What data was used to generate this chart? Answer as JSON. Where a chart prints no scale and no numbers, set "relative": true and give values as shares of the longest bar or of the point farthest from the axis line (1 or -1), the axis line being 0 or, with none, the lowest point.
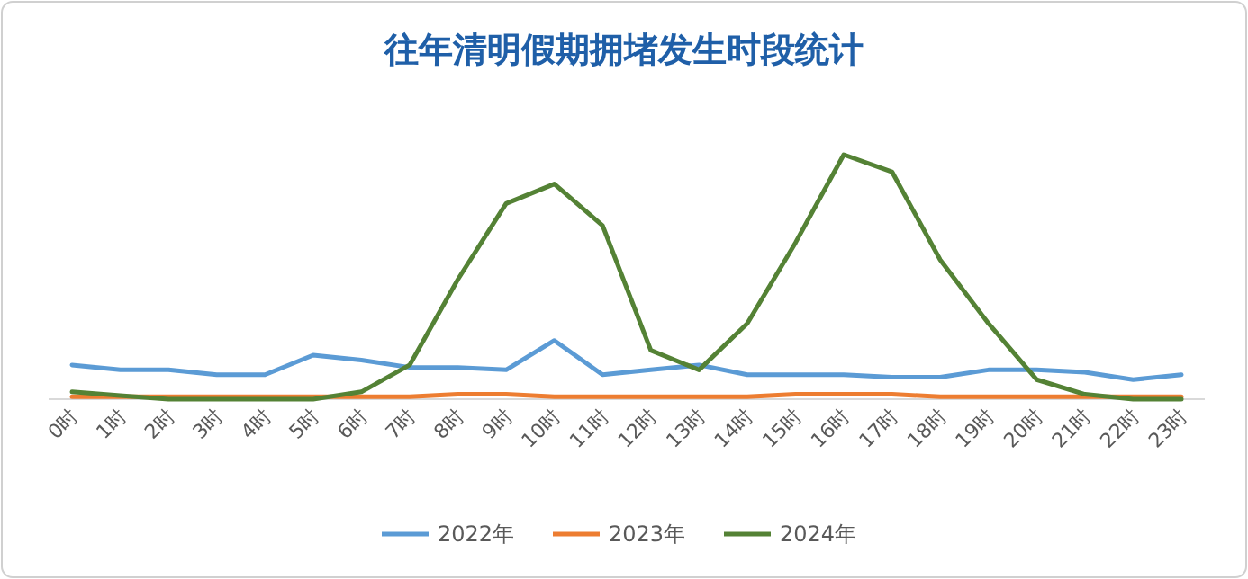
{
  "chart_data": {
    "type": "line",
    "title": "往年清明假期拥堵发生时段统计",
    "relative": true,
    "legend": "bottom",
    "tick_labels": "x",
    "categories": [
      "0时",
      "1时",
      "2时",
      "3时",
      "4时",
      "5时",
      "6时",
      "7时",
      "8时",
      "9时",
      "10时",
      "11时",
      "12时",
      "13时",
      "14时",
      "15时",
      "16时",
      "17时",
      "18时",
      "19时",
      "20时",
      "21时",
      "22时",
      "23时"
    ],
    "series": [
      {
        "name": "2022年",
        "color": "#5b9bd5",
        "values": [
          0.14,
          0.12,
          0.12,
          0.1,
          0.1,
          0.18,
          0.16,
          0.13,
          0.13,
          0.12,
          0.24,
          0.1,
          0.12,
          0.14,
          0.1,
          0.1,
          0.1,
          0.09,
          0.09,
          0.12,
          0.12,
          0.11,
          0.08,
          0.1
        ]
      },
      {
        "name": "2023年",
        "color": "#ed7d31",
        "values": [
          0.01,
          0.01,
          0.01,
          0.01,
          0.01,
          0.01,
          0.01,
          0.01,
          0.02,
          0.02,
          0.01,
          0.01,
          0.01,
          0.01,
          0.01,
          0.02,
          0.02,
          0.02,
          0.01,
          0.01,
          0.01,
          0.01,
          0.01,
          0.01
        ]
      },
      {
        "name": "2024年",
        "color": "#548235",
        "values": [
          0.03,
          0.015,
          0,
          0,
          0,
          0,
          0.03,
          0.14,
          0.49,
          0.8,
          0.88,
          0.71,
          0.2,
          0.12,
          0.31,
          0.64,
          1,
          0.93,
          0.57,
          0.31,
          0.08,
          0.02,
          0,
          0
        ]
      }
    ]
  }
}
